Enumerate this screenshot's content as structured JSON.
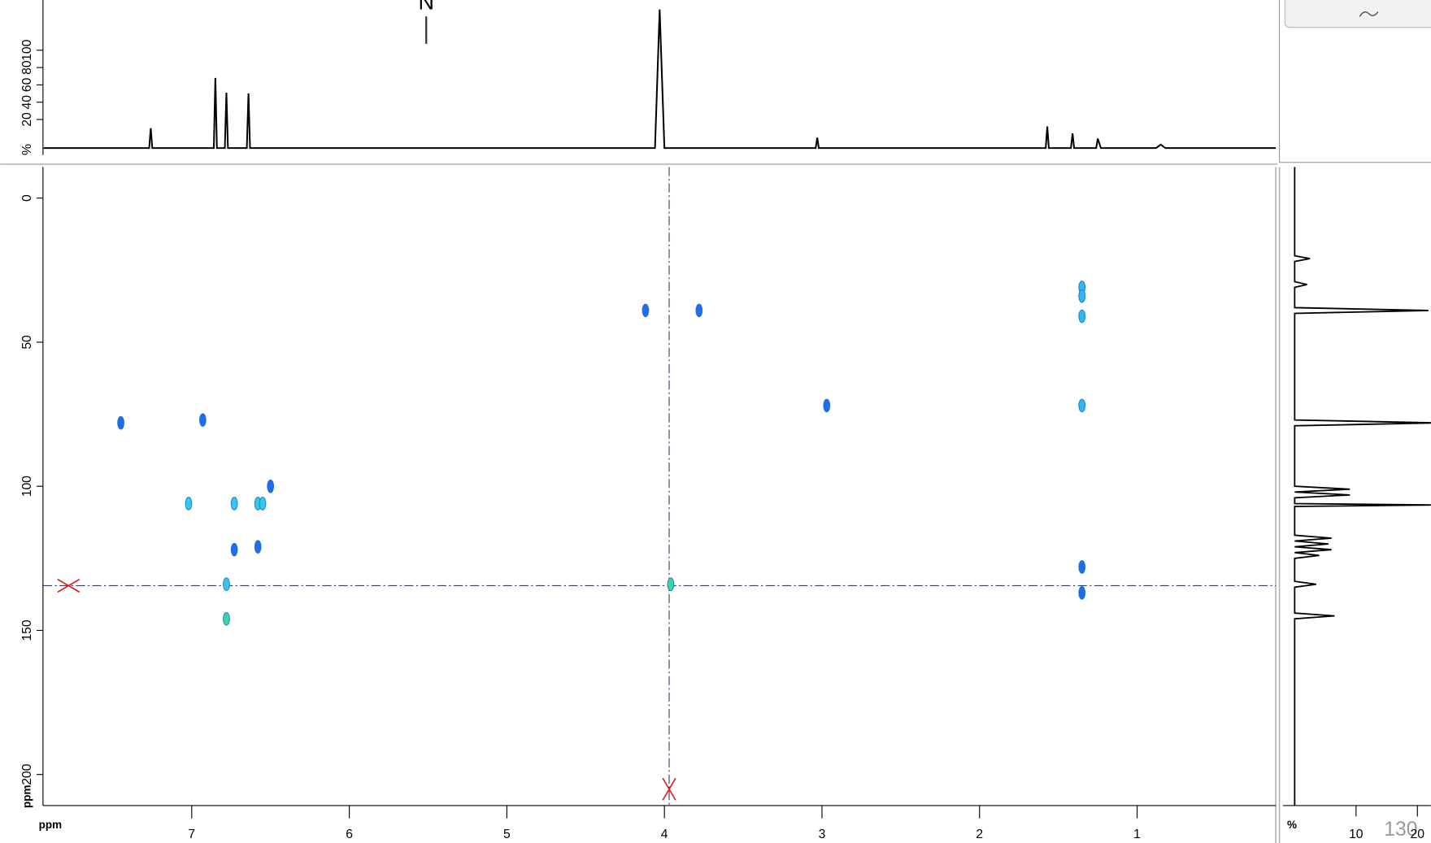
{
  "structure_label": "N",
  "page_number": "130",
  "chart_data": [
    {
      "type": "line",
      "color": "#000000",
      "x": [
        7.94,
        7.27,
        7.26,
        7.25,
        6.86,
        6.85,
        6.84,
        6.79,
        6.78,
        6.77,
        6.65,
        6.64,
        6.63,
        4.06,
        4.03,
        4.0,
        3.04,
        3.03,
        3.02,
        1.58,
        1.57,
        1.56,
        1.42,
        1.41,
        1.4,
        1.26,
        1.25,
        1.23,
        0.88,
        0.85,
        0.82,
        0.12
      ],
      "values": [
        -13,
        -13,
        10,
        -13,
        -13,
        68,
        -13,
        -13,
        51,
        -13,
        -13,
        50,
        -13,
        -13,
        147,
        -13,
        -13,
        -1,
        -13,
        -13,
        12,
        -13,
        -13,
        4,
        -13,
        -13,
        -2,
        -13,
        -13,
        -9,
        -13,
        -13
      ],
      "xlim": [
        7.944,
        0.12
      ],
      "ylim": [
        -29.5,
        158
      ],
      "y_label": "%",
      "yticks": [
        20,
        40,
        60,
        80,
        100
      ]
    },
    {
      "type": "scatter",
      "x": [
        7.45,
        6.93,
        4.12,
        3.78,
        1.35,
        1.35,
        1.35,
        2.97,
        1.35,
        7.02,
        6.73,
        6.58,
        6.55,
        6.73,
        6.58,
        6.78,
        3.96,
        6.78,
        1.35,
        1.35,
        6.5
      ],
      "values": [
        78,
        77,
        39,
        39,
        31,
        34,
        41,
        72,
        72,
        106,
        106,
        106,
        106,
        122,
        121,
        134,
        134,
        146,
        128,
        137,
        100
      ],
      "colors": [
        "#1f6ee8",
        "#1f6ee8",
        "#1f6ee8",
        "#1f6ee8",
        "#2fb8ea",
        "#2fb8ea",
        "#2fb8ea",
        "#1f6ee8",
        "#2fb8ea",
        "#38c8e6",
        "#38c8e6",
        "#38c8e6",
        "#38c8e6",
        "#1f6ee8",
        "#1f6ee8",
        "#38c8e6",
        "#3ed49a",
        "#3ed49a",
        "#1f6ee8",
        "#1f6ee8",
        "#1f6ee8"
      ],
      "xlim": [
        7.944,
        0.12
      ],
      "ylim": [
        -10.8,
        210.8
      ],
      "xticks": [
        7,
        6,
        5,
        4,
        3,
        2,
        1
      ],
      "yticks": [
        0,
        50,
        100,
        150,
        200
      ],
      "x_label": "ppm",
      "y_label": "ppm",
      "cursor": {
        "x": 3.97,
        "y": 134.5
      }
    },
    {
      "type": "line",
      "color": "#000000",
      "orientation": "vertical",
      "x": [
        -10.8,
        20,
        21,
        22,
        29,
        30,
        31,
        38,
        39,
        40,
        77,
        78,
        79,
        100,
        101,
        102,
        103,
        104,
        106,
        106.5,
        107,
        117,
        118,
        119,
        120,
        121,
        122,
        123,
        124,
        125,
        133,
        134,
        135,
        144,
        145,
        146,
        210.8
      ],
      "values": [
        0,
        0,
        2.5,
        0,
        0,
        2,
        0,
        0,
        21.8,
        0,
        0,
        23,
        0,
        0,
        9,
        0,
        9,
        0,
        0,
        23,
        0,
        0,
        6,
        0,
        5.5,
        0,
        6,
        0,
        4,
        0,
        0,
        3.5,
        0,
        0,
        6.5,
        0,
        0
      ],
      "xlim": [
        -10.8,
        210.8
      ],
      "ylim": [
        -1.3,
        22.2
      ],
      "y_label": "%",
      "yticks": [
        10,
        20
      ]
    }
  ]
}
